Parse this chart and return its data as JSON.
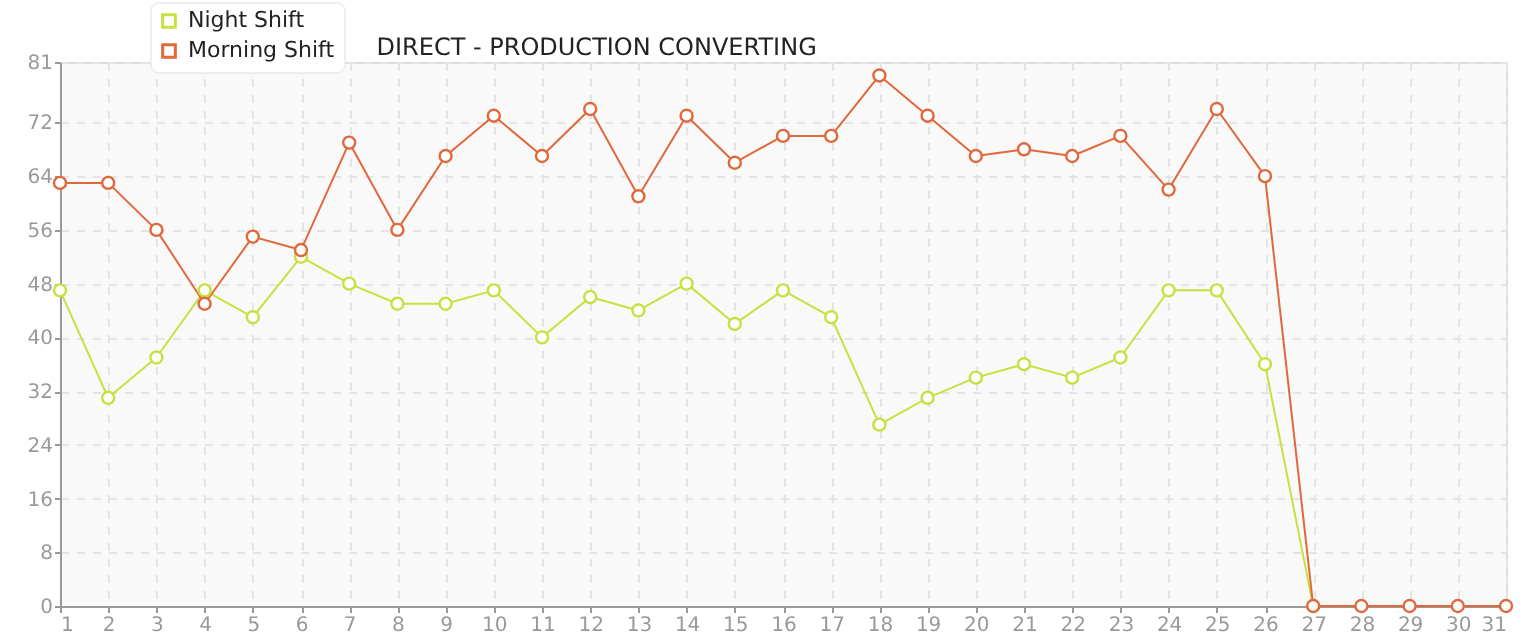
{
  "chart_data": {
    "type": "line",
    "title": "DIRECT - PRODUCTION CONVERTING",
    "x": [
      1,
      2,
      3,
      4,
      5,
      6,
      7,
      8,
      9,
      10,
      11,
      12,
      13,
      14,
      15,
      16,
      17,
      18,
      19,
      20,
      21,
      22,
      23,
      24,
      25,
      26,
      27,
      28,
      29,
      30,
      31
    ],
    "xlim": [
      1,
      31
    ],
    "xticks": [
      1,
      2,
      3,
      4,
      5,
      6,
      7,
      8,
      9,
      10,
      11,
      12,
      13,
      14,
      15,
      16,
      17,
      18,
      19,
      20,
      21,
      22,
      23,
      24,
      25,
      26,
      27,
      28,
      29,
      30,
      31
    ],
    "ylim": [
      0,
      81
    ],
    "yticks": [
      0,
      8,
      16,
      24,
      32,
      40,
      48,
      56,
      64,
      72,
      81
    ],
    "series": [
      {
        "name": "Night Shift",
        "color": "#c8e040",
        "values": [
          47,
          31,
          37,
          47,
          43,
          52,
          48,
          45,
          45,
          47,
          40,
          46,
          44,
          48,
          42,
          47,
          43,
          27,
          31,
          34,
          36,
          34,
          37,
          47,
          47,
          36,
          0,
          null,
          null,
          null,
          null
        ]
      },
      {
        "name": "Morning Shift",
        "color": "#e0683a",
        "values": [
          63,
          63,
          56,
          45,
          55,
          53,
          69,
          56,
          67,
          73,
          67,
          74,
          61,
          73,
          66,
          70,
          70,
          79,
          73,
          67,
          68,
          67,
          70,
          62,
          74,
          64,
          0,
          0,
          0,
          0,
          0
        ]
      }
    ],
    "grid": true,
    "legend": "top left",
    "marker": "circle",
    "line_style": "solid"
  }
}
